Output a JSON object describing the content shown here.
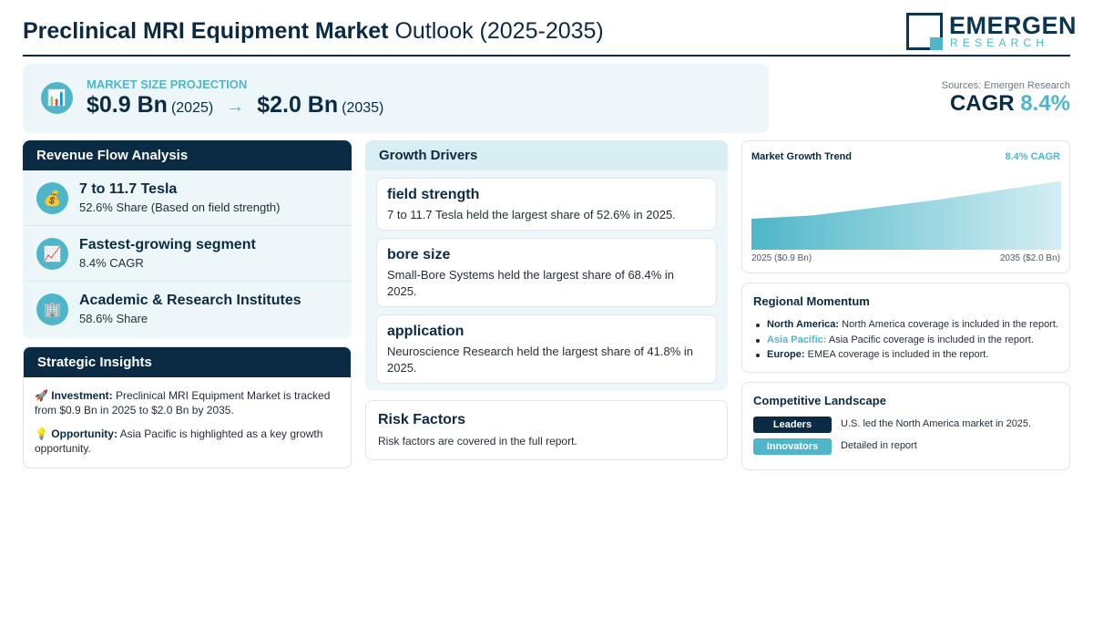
{
  "header": {
    "title_bold": "Preclinical MRI Equipment Market",
    "title_rest": " Outlook (2025-2035)",
    "logo_main": "EMERGEN",
    "logo_sub": "RESEARCH"
  },
  "projection": {
    "icon": "bar-chart-icon",
    "label": "MARKET SIZE PROJECTION",
    "start_value": "$0.9 Bn",
    "start_year": "(2025)",
    "arrow": "→",
    "end_value": "$2.0 Bn",
    "end_year": "(2035)"
  },
  "summary": {
    "sources": "Sources: Emergen Research",
    "cagr_label": "CAGR",
    "cagr_value": "8.4%"
  },
  "revenue": {
    "heading": "Revenue Flow Analysis",
    "items": [
      {
        "icon": "money-bag-icon",
        "glyph": "💰",
        "title": "7 to 11.7 Tesla",
        "sub": "52.6% Share (Based on field strength)"
      },
      {
        "icon": "trend-chart-icon",
        "glyph": "📈",
        "title": "Fastest-growing segment",
        "sub": "8.4% CAGR"
      },
      {
        "icon": "building-icon",
        "glyph": "🏢",
        "title": "Academic & Research Institutes",
        "sub": "58.6% Share"
      }
    ]
  },
  "strategic": {
    "heading": "Strategic Insights",
    "investment_icon": "🚀",
    "investment_label": "Investment:",
    "investment_text": " Preclinical MRI Equipment Market is tracked from $0.9 Bn in 2025 to $2.0 Bn by 2035.",
    "opportunity_icon": "💡",
    "opportunity_label": "Opportunity:",
    "opportunity_text": " Asia Pacific is highlighted as a key growth opportunity."
  },
  "drivers": {
    "heading": "Growth Drivers",
    "items": [
      {
        "title": "field strength",
        "text": "7 to 11.7 Tesla held the largest share of 52.6% in 2025."
      },
      {
        "title": "bore size",
        "text": "Small-Bore Systems held the largest share of 68.4% in 2025."
      },
      {
        "title": "application",
        "text": "Neuroscience Research held the largest share of 41.8% in 2025."
      }
    ]
  },
  "risk": {
    "heading": "Risk Factors",
    "text": "Risk factors are covered in the full report."
  },
  "trend": {
    "title": "Market Growth Trend",
    "cagr": "8.4% CAGR",
    "start_label": "2025 ($0.9 Bn)",
    "end_label": "2035 ($2.0 Bn)",
    "chart_data": {
      "type": "area",
      "x": [
        2025,
        2027,
        2031,
        2035
      ],
      "values": [
        0.9,
        1.0,
        1.45,
        2.0
      ],
      "ylim": [
        0,
        2.2
      ]
    }
  },
  "regional": {
    "heading": "Regional Momentum",
    "items": [
      {
        "label": "North America:",
        "text": " North America coverage is included in the report.",
        "accent": false
      },
      {
        "label": "Asia Pacific:",
        "text": " Asia Pacific coverage is included in the report.",
        "accent": true
      },
      {
        "label": "Europe:",
        "text": " EMEA coverage is included in the report.",
        "accent": false
      }
    ]
  },
  "competitive": {
    "heading": "Competitive Landscape",
    "leaders_label": "Leaders",
    "leaders_text": "U.S. led the North America market in 2025.",
    "innovators_label": "Innovators",
    "innovators_text": "Detailed in report"
  },
  "colors": {
    "navy": "#0b2a44",
    "accent": "#4fb6c9",
    "panel": "#edf7f9"
  }
}
